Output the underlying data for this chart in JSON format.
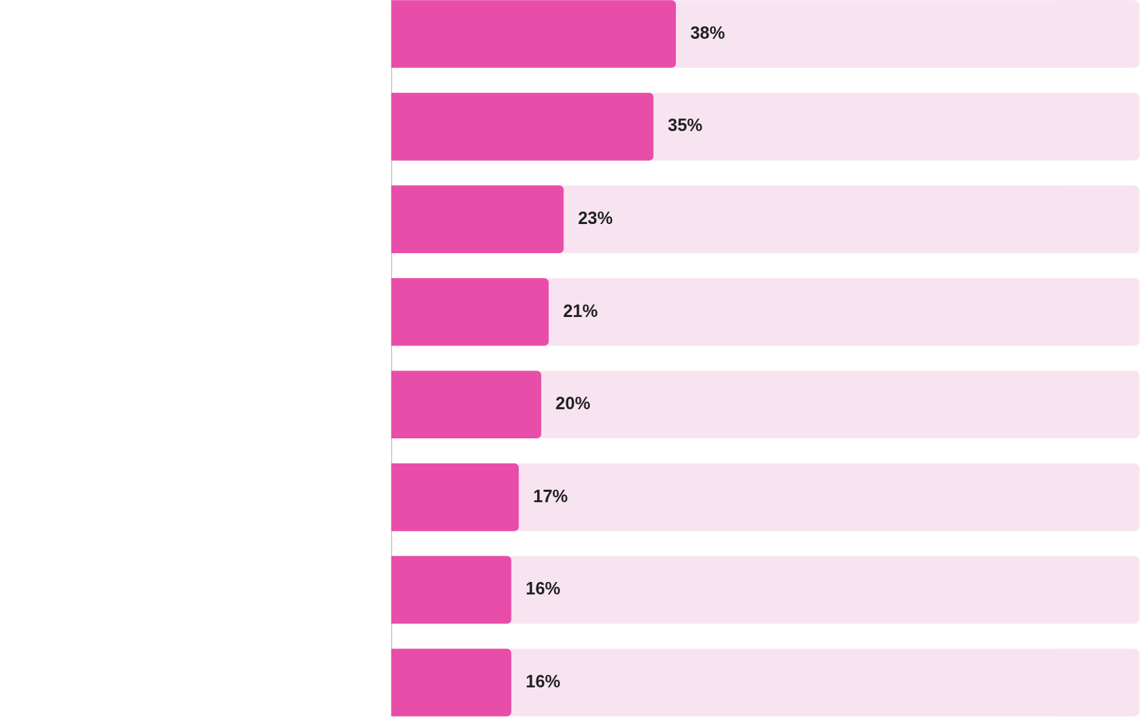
{
  "chart_data": {
    "type": "bar",
    "orientation": "horizontal",
    "stacked": true,
    "categories": [
      null,
      null,
      null,
      null,
      null,
      null,
      null,
      null
    ],
    "series": [
      {
        "color": "#e84ea9",
        "values": [
          38,
          35,
          23,
          21,
          20,
          17,
          16,
          16
        ],
        "value_labels": [
          "38%",
          "35%",
          "23%",
          "21%",
          "20%",
          "17%",
          "16%",
          "16%"
        ]
      },
      {
        "color": "#f8e4f0",
        "values": [
          62,
          65,
          77,
          79,
          80,
          83,
          84,
          84
        ]
      }
    ],
    "xlim": [
      0,
      100
    ],
    "tick_labels": false,
    "grid": false,
    "legend": false
  }
}
